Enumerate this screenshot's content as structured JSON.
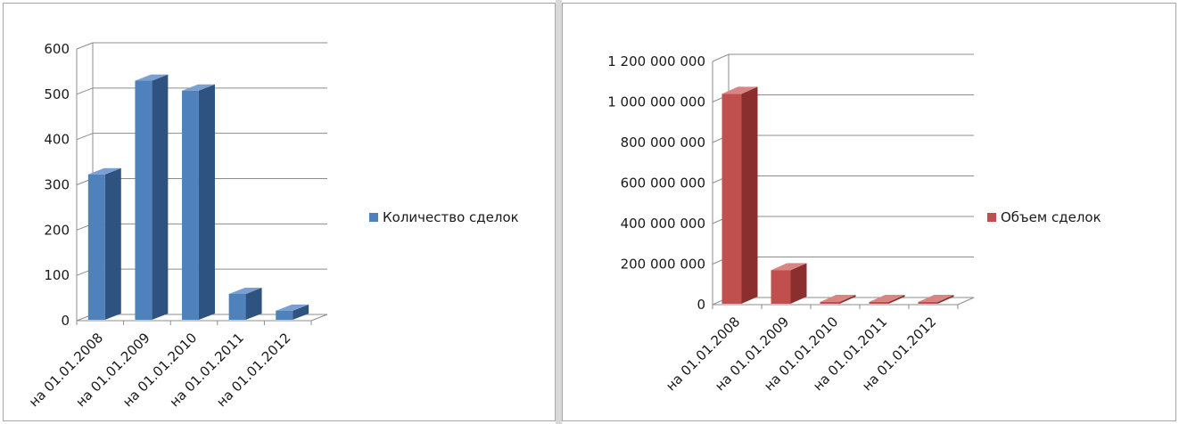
{
  "chart_data": [
    {
      "type": "bar",
      "categories": [
        "на 01.01.2008",
        "на 01.01.2009",
        "на 01.01.2010",
        "на 01.01.2011",
        "на 01.01.2012"
      ],
      "series": [
        {
          "name": "Количество сделок",
          "values": [
            323,
            530,
            508,
            59,
            22
          ]
        }
      ],
      "ylim": [
        0,
        600
      ],
      "yticks": [
        0,
        100,
        200,
        300,
        400,
        500,
        600
      ],
      "ytick_labels": [
        "0",
        "100",
        "200",
        "300",
        "400",
        "500",
        "600"
      ],
      "grid": true,
      "style": "3d-column",
      "legend_position": "right",
      "colors": {
        "front": "#4f81bd",
        "side": "#2f5381",
        "top": "#7aa0d3"
      }
    },
    {
      "type": "bar",
      "categories": [
        "на 01.01.2008",
        "на 01.01.2009",
        "на 01.01.2010",
        "на 01.01.2011",
        "на 01.01.2012"
      ],
      "series": [
        {
          "name": "Объем сделок",
          "values": [
            1040000000,
            170000000,
            0,
            0,
            0
          ]
        }
      ],
      "ylim": [
        0,
        1200000000
      ],
      "yticks": [
        0,
        200000000,
        400000000,
        600000000,
        800000000,
        1000000000,
        1200000000
      ],
      "ytick_labels": [
        "0",
        "200 000 000",
        "400 000 000",
        "600 000 000",
        "800 000 000",
        "1 000 000 000",
        "1 200 000 000"
      ],
      "grid": true,
      "style": "3d-column",
      "legend_position": "right",
      "colors": {
        "front": "#c0504d",
        "side": "#8a2f2d",
        "top": "#d98583"
      }
    }
  ]
}
